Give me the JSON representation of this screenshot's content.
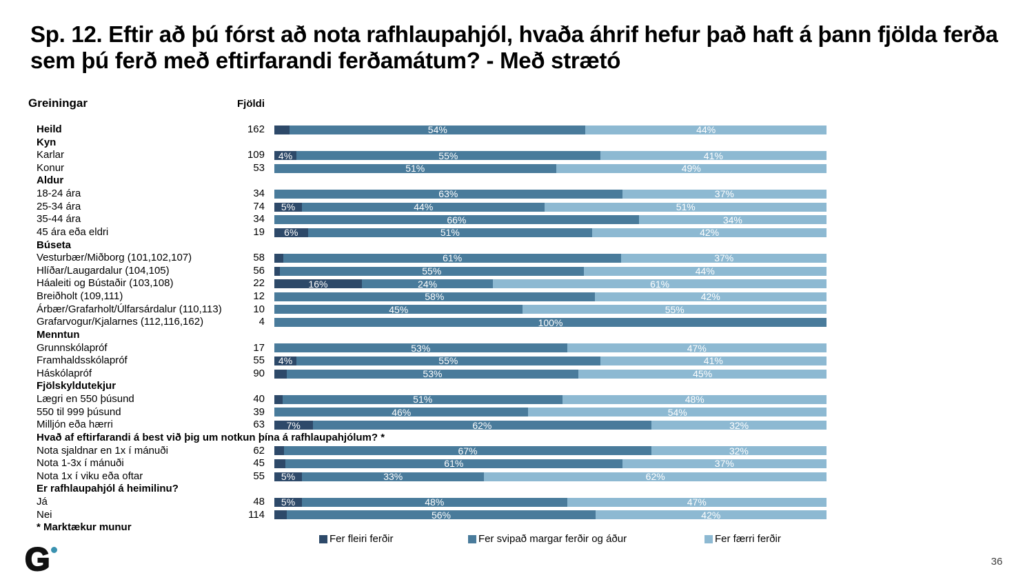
{
  "page": {
    "title_lines": [
      "Sp. 12. Eftir að þú fórst að nota rafhlaupahjól, hvaða áhrif hefur það haft á þann fjölda ferða",
      "sem þú ferð með eftirfarandi ferðamátum? - Með strætó"
    ],
    "page_number": "36",
    "logo_letter": "G",
    "logo_dot_color": "#3a92b0"
  },
  "columns": {
    "analyses": "Greiningar",
    "count": "Fjöldi"
  },
  "chart_data": {
    "type": "bar",
    "orientation": "horizontal_stacked",
    "unit": "percent",
    "title": "Sp. 12. Eftir að þú fórst að nota rafhlaupahjól, hvaða áhrif hefur það haft á þann fjölda ferða sem þú ferð með eftirfarandi ferðamátum? - Með strætó",
    "xlim": [
      0,
      100
    ],
    "legend": [
      "Fer fleiri ferðir",
      "Fer svipað margar ferðir og áður",
      "Fer færri ferðir"
    ],
    "colors": [
      "#2d4969",
      "#497b9b",
      "#8db9d2"
    ],
    "footnote": "* Marktækur munur",
    "rows": [
      {
        "kind": "data",
        "label": "Heild",
        "bold": true,
        "n": "162",
        "values": [
          2.8,
          54,
          44
        ],
        "labels": [
          "",
          "54%",
          "44%"
        ]
      },
      {
        "kind": "header",
        "label": "Kyn"
      },
      {
        "kind": "data",
        "label": "Karlar",
        "n": "109",
        "values": [
          4,
          55,
          41
        ],
        "labels": [
          "4%",
          "55%",
          "41%"
        ]
      },
      {
        "kind": "data",
        "label": "Konur",
        "n": "53",
        "values": [
          0,
          51,
          49
        ],
        "labels": [
          "",
          "51%",
          "49%"
        ]
      },
      {
        "kind": "header",
        "label": "Aldur"
      },
      {
        "kind": "data",
        "label": "18-24 ára",
        "n": "34",
        "values": [
          0,
          63,
          37
        ],
        "labels": [
          "",
          "63%",
          "37%"
        ]
      },
      {
        "kind": "data",
        "label": "25-34 ára",
        "n": "74",
        "values": [
          5,
          44,
          51
        ],
        "labels": [
          "5%",
          "44%",
          "51%"
        ]
      },
      {
        "kind": "data",
        "label": "35-44 ára",
        "n": "34",
        "values": [
          0,
          66,
          34
        ],
        "labels": [
          "",
          "66%",
          "34%"
        ]
      },
      {
        "kind": "data",
        "label": "45 ára eða eldri",
        "n": "19",
        "values": [
          6,
          51,
          42
        ],
        "labels": [
          "6%",
          "51%",
          "42%"
        ]
      },
      {
        "kind": "header",
        "label": "Búseta"
      },
      {
        "kind": "data",
        "label": "Vesturbær/Miðborg (101,102,107)",
        "n": "58",
        "values": [
          1.6,
          61,
          37
        ],
        "labels": [
          "",
          "61%",
          "37%"
        ]
      },
      {
        "kind": "data",
        "label": "Hlíðar/Laugardalur (104,105)",
        "n": "56",
        "values": [
          1,
          55,
          44
        ],
        "labels": [
          "",
          "55%",
          "44%"
        ]
      },
      {
        "kind": "data",
        "label": "Háaleiti og Bústaðir (103,108)",
        "n": "22",
        "values": [
          16,
          24,
          61
        ],
        "labels": [
          "16%",
          "24%",
          "61%"
        ]
      },
      {
        "kind": "data",
        "label": "Breiðholt (109,111)",
        "n": "12",
        "values": [
          0,
          58,
          42
        ],
        "labels": [
          "",
          "58%",
          "42%"
        ]
      },
      {
        "kind": "data",
        "label": "Árbær/Grafarholt/Úlfarsárdalur (110,113)",
        "n": "10",
        "values": [
          0,
          45,
          55
        ],
        "labels": [
          "",
          "45%",
          "55%"
        ]
      },
      {
        "kind": "data",
        "label": "Grafarvogur/Kjalarnes (112,116,162)",
        "n": "4",
        "values": [
          0,
          100,
          0
        ],
        "labels": [
          "",
          "100%",
          ""
        ]
      },
      {
        "kind": "header",
        "label": "Menntun"
      },
      {
        "kind": "data",
        "label": "Grunnskólapróf",
        "n": "17",
        "values": [
          0,
          53,
          47
        ],
        "labels": [
          "",
          "53%",
          "47%"
        ]
      },
      {
        "kind": "data",
        "label": "Framhaldsskólapróf",
        "n": "55",
        "values": [
          4,
          55,
          41
        ],
        "labels": [
          "4%",
          "55%",
          "41%"
        ]
      },
      {
        "kind": "data",
        "label": "Háskólapróf",
        "n": "90",
        "values": [
          2.2,
          53,
          45
        ],
        "labels": [
          "",
          "53%",
          "45%"
        ]
      },
      {
        "kind": "header",
        "label": "Fjölskyldutekjur"
      },
      {
        "kind": "data",
        "label": "Lægri en 550 þúsund",
        "n": "40",
        "values": [
          1.5,
          51,
          48
        ],
        "labels": [
          "",
          "51%",
          "48%"
        ]
      },
      {
        "kind": "data",
        "label": "550 til 999 þúsund",
        "n": "39",
        "values": [
          0,
          46,
          54
        ],
        "labels": [
          "",
          "46%",
          "54%"
        ]
      },
      {
        "kind": "data",
        "label": "Milljón eða hærri",
        "n": "63",
        "values": [
          7,
          62,
          32
        ],
        "labels": [
          "7%",
          "62%",
          "32%"
        ]
      },
      {
        "kind": "header",
        "label": "Hvað af eftirfarandi á best við þig um notkun þína á rafhlaupahjólum? *"
      },
      {
        "kind": "data",
        "label": "Nota sjaldnar en 1x í mánuði",
        "n": "62",
        "values": [
          1.8,
          67,
          32
        ],
        "labels": [
          "",
          "67%",
          "32%"
        ]
      },
      {
        "kind": "data",
        "label": "Nota 1-3x í mánuði",
        "n": "45",
        "values": [
          2,
          61,
          37
        ],
        "labels": [
          "",
          "61%",
          "37%"
        ]
      },
      {
        "kind": "data",
        "label": "Nota 1x í viku eða oftar",
        "n": "55",
        "values": [
          5,
          33,
          62
        ],
        "labels": [
          "5%",
          "33%",
          "62%"
        ]
      },
      {
        "kind": "header",
        "label": "Er rafhlaupahjól á heimilinu?"
      },
      {
        "kind": "data",
        "label": "Já",
        "n": "48",
        "values": [
          5,
          48,
          47
        ],
        "labels": [
          "5%",
          "48%",
          "47%"
        ]
      },
      {
        "kind": "data",
        "label": "Nei",
        "n": "114",
        "values": [
          2.3,
          56,
          42
        ],
        "labels": [
          "",
          "56%",
          "42%"
        ]
      },
      {
        "kind": "note",
        "label": "* Marktækur munur"
      }
    ]
  }
}
